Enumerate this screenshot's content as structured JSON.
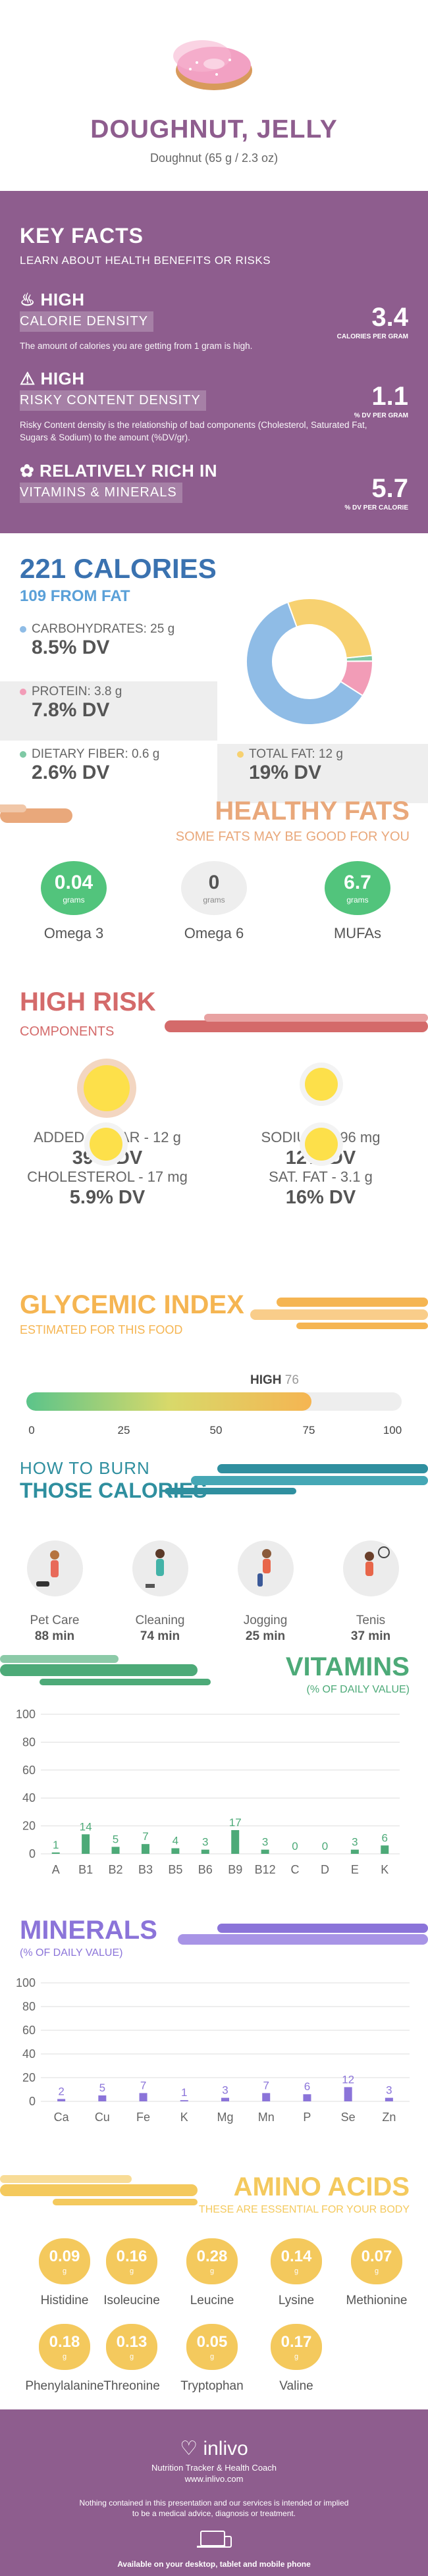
{
  "header": {
    "title": "DOUGHNUT, JELLY",
    "serving": "Doughnut (65 g / 2.3 oz)"
  },
  "key_facts": {
    "title": "KEY FACTS",
    "subtitle": "LEARN ABOUT HEALTH BENEFITS OR RISKS",
    "items": [
      {
        "level": "HIGH",
        "label": "CALORIE DENSITY",
        "value": "3.4",
        "unit": "CALORIES PER GRAM",
        "desc": "The amount of calories you are getting from 1 gram is high.",
        "icon": "flame-icon"
      },
      {
        "level": "HIGH",
        "label": "RISKY CONTENT DENSITY",
        "value": "1.1",
        "unit": "% DV PER GRAM",
        "desc": "Risky Content density is the relationship of bad components (Cholesterol, Saturated Fat, Sugars & Sodium) to the amount (%DV/gr).",
        "icon": "warning-icon"
      },
      {
        "level": "RELATIVELY RICH  IN",
        "label": "VITAMINS & MINERALS",
        "value": "5.7",
        "unit": "% DV PER CALORIE",
        "desc": "",
        "icon": "leaf-icon"
      }
    ]
  },
  "calories": {
    "title": "221 CALORIES",
    "from_fat": "109 FROM FAT",
    "nutrients": [
      {
        "label": "CARBOHYDRATES: 25 g",
        "dv": "8.5% DV",
        "color": "#8fbce6"
      },
      {
        "label": "PROTEIN: 3.8 g",
        "dv": "7.8% DV",
        "color": "#f29cb7"
      },
      {
        "label": "DIETARY FIBER: 0.6 g",
        "dv": "2.6% DV",
        "color": "#7fc9a5"
      },
      {
        "label": "TOTAL FAT: 12 g",
        "dv": "19% DV",
        "color": "#f7d170"
      }
    ],
    "pie": [
      {
        "name": "carbohydrates",
        "value": 25,
        "color": "#8fbce6"
      },
      {
        "name": "protein",
        "value": 3.8,
        "color": "#f29cb7"
      },
      {
        "name": "dietary fiber",
        "value": 0.6,
        "color": "#7fc9a5"
      },
      {
        "name": "total fat",
        "value": 12,
        "color": "#f7d170"
      }
    ]
  },
  "healthy_fats": {
    "title": "HEALTHY FATS",
    "subtitle": "SOME FATS MAY BE GOOD FOR YOU",
    "items": [
      {
        "value": "0.04",
        "unit": "grams",
        "label": "Omega 3",
        "color": "#52c47c"
      },
      {
        "value": "0",
        "unit": "grams",
        "label": "Omega 6",
        "color": "#eeeeee"
      },
      {
        "value": "6.7",
        "unit": "grams",
        "label": "MUFAs",
        "color": "#52c47c"
      }
    ]
  },
  "high_risk": {
    "title": "HIGH RISK",
    "subtitle": "COMPONENTS",
    "items": [
      {
        "label": "ADDED SUGAR - 12 g",
        "dv": "39% DV"
      },
      {
        "label": "SODIUM - 296 mg",
        "dv": "12% DV"
      },
      {
        "label": "CHOLESTEROL - 17 mg",
        "dv": "5.9% DV"
      },
      {
        "label": "SAT. FAT - 3.1 g",
        "dv": "16% DV"
      }
    ]
  },
  "glycemic": {
    "title": "GLYCEMIC INDEX",
    "subtitle": "ESTIMATED FOR THIS FOOD",
    "level": "HIGH",
    "value": 76,
    "ticks": [
      "0",
      "25",
      "50",
      "75",
      "100"
    ]
  },
  "burn": {
    "title_1": "HOW TO BURN",
    "title_2": "THOSE CALORIES",
    "items": [
      {
        "activity": "Pet Care",
        "minutes": "88 min",
        "icon": "dog-walking-icon"
      },
      {
        "activity": "Cleaning",
        "minutes": "74 min",
        "icon": "vacuum-icon"
      },
      {
        "activity": "Jogging",
        "minutes": "25 min",
        "icon": "runner-icon"
      },
      {
        "activity": "Tenis",
        "minutes": "37 min",
        "icon": "tennis-icon"
      }
    ]
  },
  "vitamins": {
    "title": "VITAMINS",
    "subtitle": "(% OF DAILY VALUE)"
  },
  "minerals": {
    "title": "MINERALS",
    "subtitle": "(% OF DAILY VALUE)"
  },
  "chart_data": [
    {
      "type": "bar",
      "title": "VITAMINS",
      "subtitle": "(% OF DAILY VALUE)",
      "categories": [
        "A",
        "B1",
        "B2",
        "B3",
        "B5",
        "B6",
        "B9",
        "B12",
        "C",
        "D",
        "E",
        "K"
      ],
      "values": [
        1,
        14,
        5,
        7,
        4,
        3,
        17,
        3,
        0,
        0,
        3,
        6
      ],
      "ylim": [
        0,
        100
      ],
      "yticks": [
        "0",
        "20",
        "40",
        "60",
        "80",
        "100"
      ],
      "color": "#4daa78"
    },
    {
      "type": "bar",
      "title": "MINERALS",
      "subtitle": "(% OF DAILY VALUE)",
      "categories": [
        "Ca",
        "Cu",
        "Fe",
        "K",
        "Mg",
        "Mn",
        "P",
        "Se",
        "Zn"
      ],
      "values": [
        2,
        5,
        7,
        1,
        3,
        7,
        6,
        12,
        3
      ],
      "ylim": [
        0,
        100
      ],
      "yticks": [
        "0",
        "20",
        "40",
        "60",
        "80",
        "100"
      ],
      "color": "#8b74d9"
    }
  ],
  "amino": {
    "title": "AMINO ACIDS",
    "subtitle": "THESE ARE ESSENTIAL FOR YOUR BODY",
    "unit": "g",
    "items": [
      {
        "value": "0.09",
        "label": "Histidine"
      },
      {
        "value": "0.16",
        "label": "Isoleucine"
      },
      {
        "value": "0.28",
        "label": "Leucine"
      },
      {
        "value": "0.14",
        "label": "Lysine"
      },
      {
        "value": "0.07",
        "label": "Methionine"
      },
      {
        "value": "0.18",
        "label": "Phenylalanine"
      },
      {
        "value": "0.13",
        "label": "Threonine"
      },
      {
        "value": "0.05",
        "label": "Tryptophan"
      },
      {
        "value": "0.17",
        "label": "Valine"
      }
    ]
  },
  "footer": {
    "brand": "inlivo",
    "tagline": "Nutrition Tracker & Health Coach",
    "url": "www.inlivo.com",
    "disclaimer_1": "Nothing contained in this presentation and our services is intended or implied",
    "disclaimer_2": "to be a medical advice, diagnosis or treatment.",
    "available": "Available on your desktop, tablet and mobile phone"
  }
}
